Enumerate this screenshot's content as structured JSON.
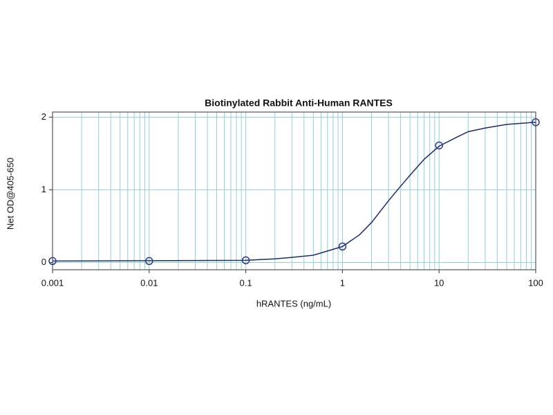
{
  "chart_data": {
    "type": "scatter",
    "title": "Biotinylated Rabbit Anti-Human RANTES",
    "x_label": "hRANTES (ng/mL)",
    "y_label": "Net OD@405-650",
    "x": [
      0.001,
      0.01,
      0.1,
      1,
      10,
      100
    ],
    "values": [
      0.02,
      0.02,
      0.03,
      0.22,
      1.61,
      1.93
    ],
    "color": "#2b3a8f",
    "curve": {
      "color": "#1f2a6e",
      "x": [
        0.001,
        0.1,
        0.2,
        0.3,
        0.5,
        1,
        1.5,
        2,
        3,
        4,
        5,
        7,
        10,
        15,
        20,
        30,
        50,
        100
      ],
      "values": [
        0.02,
        0.03,
        0.05,
        0.07,
        0.1,
        0.22,
        0.38,
        0.55,
        0.85,
        1.05,
        1.2,
        1.42,
        1.6,
        1.72,
        1.8,
        1.85,
        1.9,
        1.93
      ]
    },
    "xlim": [
      0.001,
      100
    ],
    "xticks": [
      0.001,
      0.01,
      0.1,
      1,
      10,
      100
    ],
    "xscale": "log",
    "ylim": [
      -0.1,
      2.07
    ],
    "yticks": [
      0,
      1,
      2
    ],
    "grid": true,
    "grid_color": "#8fcfd6"
  }
}
